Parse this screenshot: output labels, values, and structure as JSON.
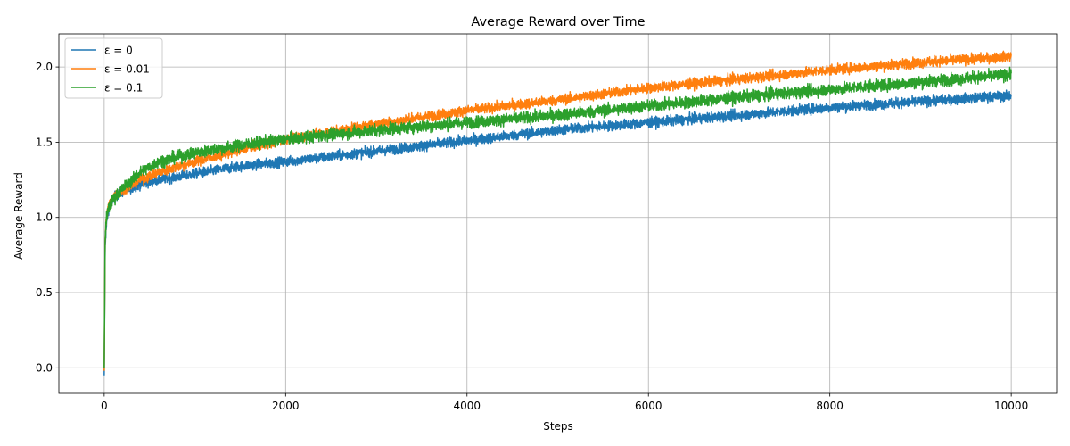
{
  "chart_data": {
    "type": "line",
    "title": "Average Reward over Time",
    "xlabel": "Steps",
    "ylabel": "Average Reward",
    "xlim": [
      -500,
      10500
    ],
    "ylim": [
      -0.17,
      2.22
    ],
    "x_ticks": [
      0,
      2000,
      4000,
      6000,
      8000,
      10000
    ],
    "x_tick_labels": [
      "0",
      "2000",
      "4000",
      "6000",
      "8000",
      "10000"
    ],
    "y_ticks": [
      0.0,
      0.5,
      1.0,
      1.5,
      2.0
    ],
    "y_tick_labels": [
      "0.0",
      "0.5",
      "1.0",
      "1.5",
      "2.0"
    ],
    "grid": true,
    "legend_position": "top-left",
    "series": [
      {
        "name": "ε = 0",
        "color": "#1f77b4",
        "noise": 0.03,
        "points": [
          [
            0,
            -0.05
          ],
          [
            10,
            0.8
          ],
          [
            25,
            0.97
          ],
          [
            50,
            1.06
          ],
          [
            100,
            1.13
          ],
          [
            200,
            1.17
          ],
          [
            400,
            1.22
          ],
          [
            600,
            1.25
          ],
          [
            1000,
            1.29
          ],
          [
            1500,
            1.34
          ],
          [
            2000,
            1.37
          ],
          [
            3000,
            1.44
          ],
          [
            4000,
            1.51
          ],
          [
            5000,
            1.58
          ],
          [
            6000,
            1.63
          ],
          [
            7000,
            1.68
          ],
          [
            8000,
            1.73
          ],
          [
            9000,
            1.77
          ],
          [
            10000,
            1.81
          ]
        ]
      },
      {
        "name": "ε = 0.01",
        "color": "#ff7f0e",
        "noise": 0.03,
        "points": [
          [
            0,
            -0.02
          ],
          [
            10,
            0.85
          ],
          [
            25,
            1.0
          ],
          [
            50,
            1.08
          ],
          [
            100,
            1.14
          ],
          [
            200,
            1.18
          ],
          [
            400,
            1.25
          ],
          [
            600,
            1.3
          ],
          [
            1000,
            1.37
          ],
          [
            1500,
            1.45
          ],
          [
            2000,
            1.52
          ],
          [
            3000,
            1.62
          ],
          [
            4000,
            1.71
          ],
          [
            5000,
            1.78
          ],
          [
            6000,
            1.86
          ],
          [
            7000,
            1.92
          ],
          [
            8000,
            1.98
          ],
          [
            9000,
            2.03
          ],
          [
            10000,
            2.07
          ]
        ]
      },
      {
        "name": "ε = 0.1",
        "color": "#2ca02c",
        "noise": 0.035,
        "points": [
          [
            0,
            0.0
          ],
          [
            10,
            0.85
          ],
          [
            25,
            1.0
          ],
          [
            50,
            1.06
          ],
          [
            100,
            1.12
          ],
          [
            200,
            1.19
          ],
          [
            400,
            1.3
          ],
          [
            600,
            1.37
          ],
          [
            1000,
            1.43
          ],
          [
            1500,
            1.48
          ],
          [
            2000,
            1.52
          ],
          [
            3000,
            1.58
          ],
          [
            4000,
            1.63
          ],
          [
            5000,
            1.68
          ],
          [
            6000,
            1.74
          ],
          [
            7000,
            1.8
          ],
          [
            8000,
            1.85
          ],
          [
            9000,
            1.9
          ],
          [
            10000,
            1.95
          ]
        ]
      }
    ]
  }
}
